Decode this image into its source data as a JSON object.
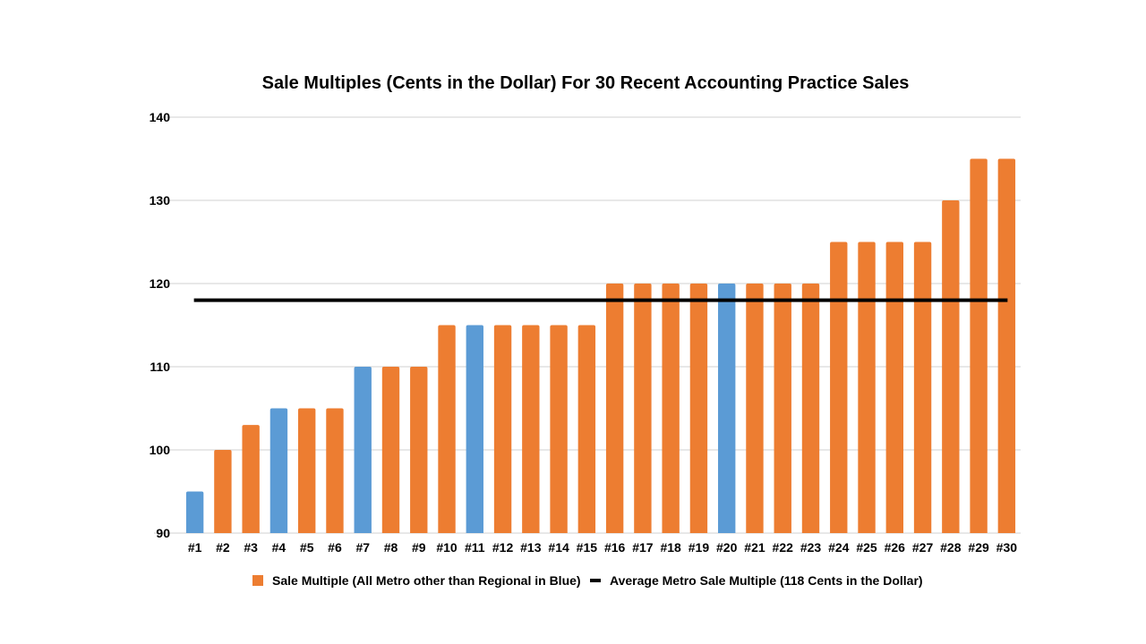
{
  "chart_data": {
    "type": "bar",
    "title": "Sale Multiples (Cents in the Dollar) For 30 Recent Accounting Practice Sales",
    "xlabel": "",
    "ylabel": "",
    "ylim": [
      90,
      140
    ],
    "yticks": [
      90,
      100,
      110,
      120,
      130,
      140
    ],
    "grid": true,
    "legend_position": "bottom",
    "categories": [
      "#1",
      "#2",
      "#3",
      "#4",
      "#5",
      "#6",
      "#7",
      "#8",
      "#9",
      "#10",
      "#11",
      "#12",
      "#13",
      "#14",
      "#15",
      "#16",
      "#17",
      "#18",
      "#19",
      "#20",
      "#21",
      "#22",
      "#23",
      "#24",
      "#25",
      "#26",
      "#27",
      "#28",
      "#29",
      "#30"
    ],
    "series": [
      {
        "name": "Sale Multiple (All Metro other than Regional in Blue)",
        "type": "bar",
        "values": [
          95,
          100,
          103,
          105,
          105,
          105,
          110,
          110,
          110,
          115,
          115,
          115,
          115,
          115,
          115,
          120,
          120,
          120,
          120,
          120,
          120,
          120,
          120,
          125,
          125,
          125,
          125,
          130,
          135,
          135
        ],
        "regional": [
          true,
          false,
          false,
          true,
          false,
          false,
          true,
          false,
          false,
          false,
          true,
          false,
          false,
          false,
          false,
          false,
          false,
          false,
          false,
          true,
          false,
          false,
          false,
          false,
          false,
          false,
          false,
          false,
          false,
          false
        ]
      },
      {
        "name": "Average Metro Sale Multiple (118 Cents in the Dollar)",
        "type": "line",
        "value": 118
      }
    ],
    "colors": {
      "metro": "#ED7D31",
      "regional": "#5B9BD5",
      "average_line": "#000000",
      "grid": "#D0D0D0"
    }
  }
}
